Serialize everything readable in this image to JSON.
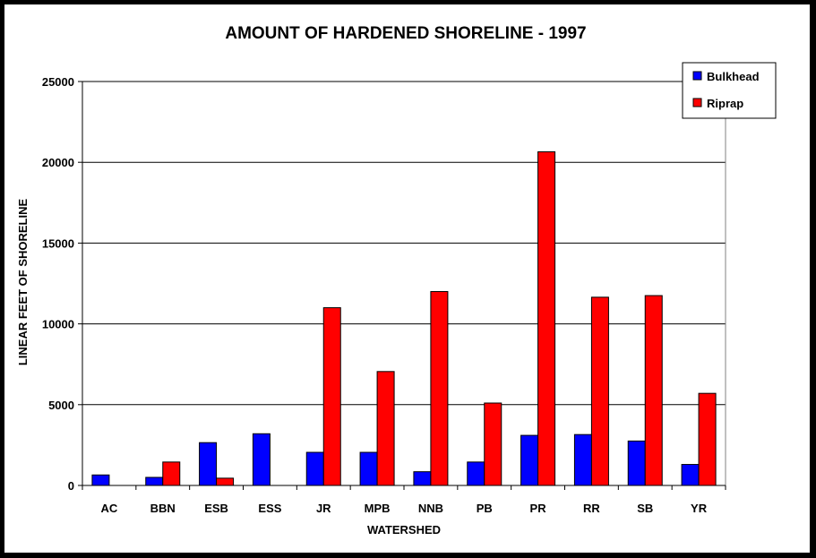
{
  "chart_data": {
    "type": "bar",
    "title": "AMOUNT OF HARDENED SHORELINE - 1997",
    "xlabel": "WATERSHED",
    "ylabel": "LINEAR FEET OF SHORELINE",
    "ylim": [
      0,
      25000
    ],
    "yticks": [
      "0",
      "5000",
      "10000",
      "15000",
      "20000",
      "25000"
    ],
    "grid": true,
    "legend_position": "top-right",
    "categories": [
      "AC",
      "BBN",
      "ESB",
      "ESS",
      "JR",
      "MPB",
      "NNB",
      "PB",
      "PR",
      "RR",
      "SB",
      "YR"
    ],
    "series": [
      {
        "name": "Bulkhead",
        "color": "#0000FF",
        "values": [
          650,
          500,
          2650,
          3200,
          2050,
          2050,
          850,
          1450,
          3100,
          3150,
          2750,
          1300
        ]
      },
      {
        "name": "Riprap",
        "color": "#FF0000",
        "values": [
          0,
          1450,
          450,
          0,
          11000,
          7050,
          12000,
          5100,
          20650,
          11650,
          11750,
          5700
        ]
      }
    ]
  }
}
